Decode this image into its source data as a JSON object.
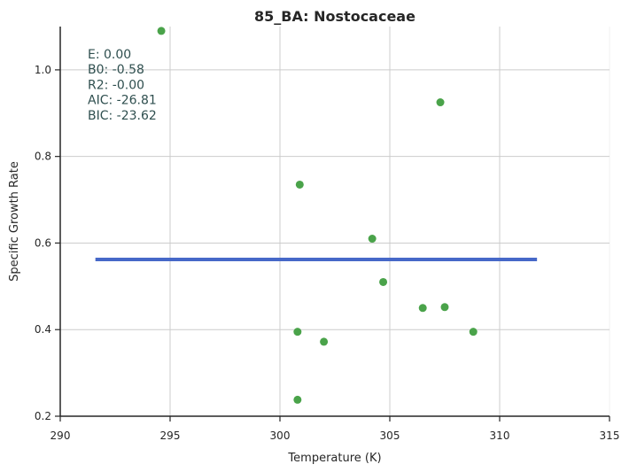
{
  "chart_data": {
    "type": "scatter",
    "title": "85_BA: Nostocaceae",
    "xlabel": "Temperature (K)",
    "ylabel": "Specific Growth Rate",
    "xlim": [
      290,
      315
    ],
    "ylim": [
      0.2,
      1.1
    ],
    "xticks": [
      "290",
      "295",
      "300",
      "305",
      "310",
      "315"
    ],
    "yticks": [
      "0.2",
      "0.4",
      "0.6",
      "0.8",
      "1.0"
    ],
    "grid": true,
    "annotation_lines": [
      "E:  0.00",
      "B0:  -0.58",
      "R2:  -0.00",
      "AIC: -26.81",
      "BIC: -23.62"
    ],
    "annotation_color": "#2f4f4f",
    "point_color": "#4aa34a",
    "line_color": "#4668c8",
    "points": [
      {
        "x": 294.6,
        "y": 1.09
      },
      {
        "x": 307.3,
        "y": 0.925
      },
      {
        "x": 300.9,
        "y": 0.735
      },
      {
        "x": 304.2,
        "y": 0.61
      },
      {
        "x": 304.7,
        "y": 0.51
      },
      {
        "x": 306.5,
        "y": 0.45
      },
      {
        "x": 307.5,
        "y": 0.452
      },
      {
        "x": 308.8,
        "y": 0.395
      },
      {
        "x": 300.8,
        "y": 0.395
      },
      {
        "x": 302.0,
        "y": 0.372
      },
      {
        "x": 300.8,
        "y": 0.238
      }
    ],
    "fit_line": {
      "x": [
        291.6,
        311.7
      ],
      "y": [
        0.562,
        0.562
      ]
    }
  }
}
